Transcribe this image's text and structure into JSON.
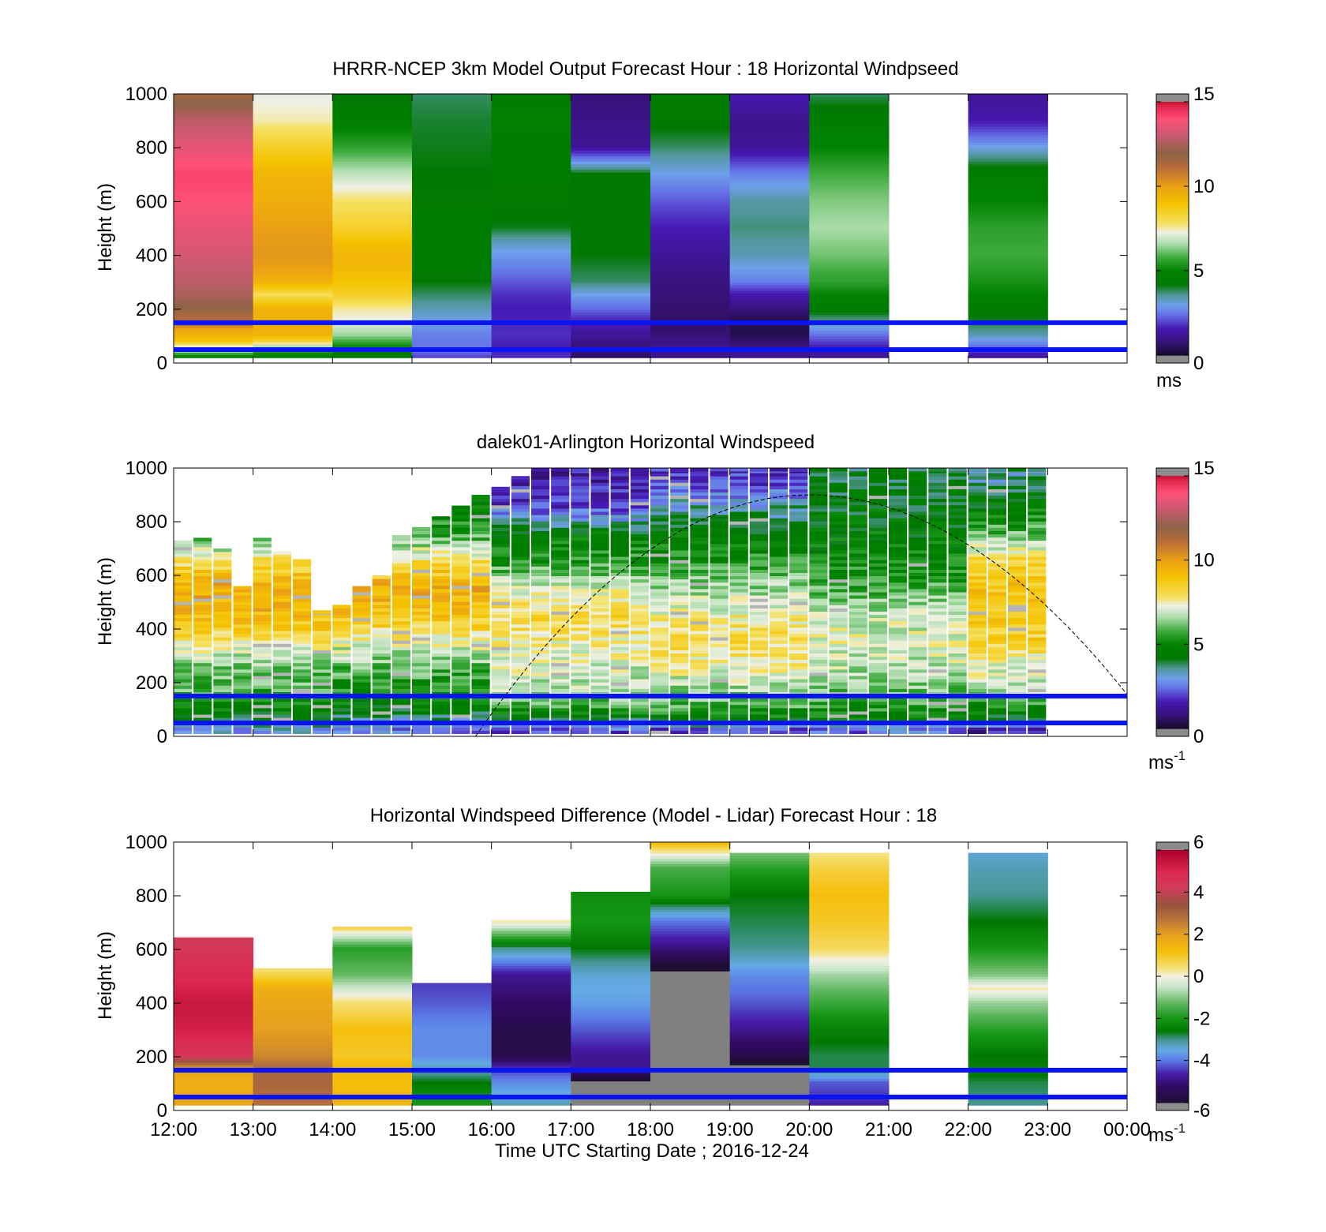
{
  "chart_data": [
    {
      "type": "heatmap",
      "title": "HRRR-NCEP 3km Model Output   Forecast Hour : 18 Horizontal Windpseed",
      "ylabel": "Height (m)",
      "ylim": [
        0,
        1000
      ],
      "yticks": [
        "0",
        "200",
        "400",
        "600",
        "800",
        "1000"
      ],
      "xlim": [
        0,
        12
      ],
      "colorbar": {
        "range": [
          0,
          15
        ],
        "ticks": [
          "0",
          "5",
          "10",
          "15"
        ],
        "unit": "ms"
      },
      "reference_lines_m": [
        150,
        50
      ],
      "columns": [
        {
          "hour": 0,
          "heights": [
            20,
            40,
            60,
            80,
            100,
            120,
            140,
            160,
            180,
            200,
            250,
            300,
            350,
            400,
            450,
            500,
            550,
            600,
            650,
            700,
            800,
            900,
            1000
          ],
          "values": [
            4.8,
            6.5,
            7.5,
            9.0,
            9.5,
            9.8,
            11.0,
            11.2,
            11.5,
            12.0,
            12.5,
            12.8,
            13.0,
            13.2,
            13.4,
            13.6,
            13.8,
            14.0,
            14.1,
            14.2,
            13.5,
            12.8,
            11.5
          ]
        },
        {
          "hour": 1,
          "heights": [
            20,
            40,
            60,
            80,
            100,
            150,
            200,
            250,
            300,
            350,
            400,
            500,
            600,
            700,
            800,
            900,
            1000
          ],
          "values": [
            4.8,
            5.5,
            6.8,
            8.5,
            9.4,
            9.6,
            9.4,
            8.0,
            9.5,
            10.0,
            10.2,
            10.0,
            9.6,
            9.4,
            8.5,
            7.5,
            7.2
          ]
        },
        {
          "hour": 2,
          "heights": [
            20,
            40,
            60,
            100,
            150,
            200,
            250,
            300,
            350,
            400,
            450,
            500,
            600,
            700,
            800,
            900,
            1000
          ],
          "values": [
            4.2,
            4.6,
            5.2,
            6.5,
            7.2,
            7.6,
            8.5,
            9.0,
            9.3,
            9.4,
            9.0,
            8.5,
            7.8,
            6.8,
            5.6,
            4.7,
            4.2
          ]
        },
        {
          "hour": 3,
          "heights": [
            20,
            40,
            60,
            100,
            150,
            200,
            250,
            300,
            350,
            400,
            500,
            600,
            700,
            800,
            900,
            1000
          ],
          "values": [
            2.0,
            2.4,
            2.5,
            2.6,
            3.0,
            3.4,
            3.8,
            4.2,
            4.5,
            4.6,
            4.6,
            4.4,
            4.2,
            4.1,
            4.0,
            3.8
          ]
        },
        {
          "hour": 4,
          "heights": [
            20,
            50,
            100,
            150,
            200,
            250,
            300,
            350,
            400,
            450,
            500,
            600,
            700,
            800,
            900,
            1000
          ],
          "values": [
            1.8,
            1.6,
            1.8,
            1.7,
            1.6,
            1.8,
            2.2,
            2.6,
            2.9,
            3.4,
            4.1,
            4.4,
            4.5,
            4.6,
            4.8,
            4.6
          ]
        },
        {
          "hour": 5,
          "heights": [
            20,
            50,
            100,
            150,
            200,
            250,
            300,
            400,
            500,
            600,
            700,
            800,
            900,
            1000
          ],
          "values": [
            0.6,
            0.8,
            1.2,
            1.6,
            2.4,
            3.0,
            3.8,
            4.2,
            4.3,
            4.3,
            4.2,
            1.2,
            1.0,
            0.8
          ]
        },
        {
          "hour": 6,
          "heights": [
            20,
            50,
            100,
            150,
            200,
            250,
            300,
            400,
            500,
            600,
            700,
            800,
            900,
            1000
          ],
          "values": [
            1.0,
            1.2,
            0.8,
            0.6,
            0.7,
            0.8,
            0.9,
            1.2,
            1.6,
            2.2,
            3.0,
            3.8,
            4.4,
            4.5
          ]
        },
        {
          "hour": 7,
          "heights": [
            20,
            50,
            100,
            150,
            200,
            250,
            300,
            400,
            500,
            600,
            700,
            800,
            900,
            1000
          ],
          "values": [
            1.2,
            1.0,
            0.4,
            0.3,
            0.9,
            1.5,
            2.6,
            3.4,
            3.7,
            3.5,
            2.6,
            1.2,
            1.1,
            1.6
          ]
        },
        {
          "hour": 8,
          "heights": [
            20,
            50,
            100,
            150,
            200,
            250,
            300,
            400,
            500,
            600,
            700,
            800,
            900,
            1000
          ],
          "values": [
            1.2,
            1.5,
            2.4,
            3.5,
            4.5,
            5.0,
            5.6,
            6.2,
            6.6,
            6.3,
            5.8,
            5.0,
            4.6,
            3.8
          ]
        },
        {
          "hour": 10,
          "heights": [
            20,
            50,
            100,
            150,
            200,
            250,
            300,
            400,
            500,
            600,
            700,
            800,
            900,
            1000
          ],
          "values": [
            1.3,
            2.2,
            3.4,
            4.0,
            4.6,
            5.0,
            5.3,
            5.8,
            5.6,
            5.0,
            4.6,
            3.0,
            1.5,
            1.2
          ]
        }
      ]
    },
    {
      "type": "heatmap",
      "title": "dalek01-Arlington  Horizontal Windspeed",
      "ylabel": "Height (m)",
      "ylim": [
        0,
        1000
      ],
      "yticks": [
        "0",
        "200",
        "400",
        "600",
        "800",
        "1000"
      ],
      "xlim": [
        0,
        12
      ],
      "colorbar": {
        "range": [
          0,
          15
        ],
        "ticks": [
          "0",
          "5",
          "10",
          "15"
        ],
        "unit": "ms",
        "unit_sup": "-1"
      },
      "reference_lines_m": [
        150,
        50
      ],
      "dashed_arc": {
        "x_start": 3.8,
        "x_end": 12.0,
        "peak_x": 8.0,
        "peak_height": 900
      },
      "profile_interval_hours": 0.25,
      "top_of_data_m": [
        730,
        740,
        700,
        560,
        740,
        690,
        660,
        470,
        490,
        560,
        600,
        750,
        780,
        820,
        860,
        900,
        930,
        970,
        1000,
        1000,
        1000,
        1000,
        1000,
        1000,
        1000,
        1000,
        1000,
        1000,
        1000,
        1000,
        1000,
        1000,
        1000,
        1000,
        1000,
        1000,
        1000,
        1000,
        1000,
        1000,
        1000,
        1000,
        1000,
        1000
      ],
      "profile_levels_m": [
        20,
        50,
        100,
        150,
        250,
        350,
        450,
        550,
        650,
        750,
        850,
        950
      ],
      "profile_speeds_by_period": [
        {
          "hours": "12:00-14:00",
          "values": [
            3.0,
            4.0,
            5.0,
            5.8,
            6.2,
            7.8,
            9.3,
            9.8,
            8.0,
            5.6,
            5.0,
            4.5
          ]
        },
        {
          "hours": "14:00-16:00",
          "values": [
            2.6,
            3.4,
            4.6,
            5.2,
            6.0,
            7.4,
            9.0,
            9.6,
            8.0,
            5.6,
            5.0,
            4.5
          ]
        },
        {
          "hours": "16:00-18:00",
          "values": [
            2.2,
            4.0,
            5.5,
            6.6,
            7.0,
            7.6,
            8.2,
            7.0,
            5.5,
            4.6,
            2.0,
            1.4
          ]
        },
        {
          "hours": "18:00-20:00",
          "values": [
            2.0,
            4.4,
            5.6,
            6.4,
            7.4,
            8.2,
            7.4,
            6.6,
            5.4,
            4.6,
            3.4,
            1.8
          ]
        },
        {
          "hours": "20:00-22:00",
          "values": [
            2.4,
            4.6,
            5.4,
            6.0,
            6.8,
            7.2,
            6.8,
            5.8,
            5.0,
            4.6,
            4.4,
            4.2
          ]
        },
        {
          "hours": "22:00-00:00",
          "values": [
            1.4,
            3.8,
            5.0,
            6.6,
            7.2,
            8.4,
            8.8,
            9.0,
            8.2,
            6.0,
            4.6,
            3.6
          ]
        }
      ]
    },
    {
      "type": "heatmap",
      "title": "Horizontal Windspeed Difference (Model - Lidar) Forecast Hour : 18",
      "ylabel": "Height (m)",
      "xlabel": "Time UTC  Starting Date ; 2016-12-24",
      "ylim": [
        0,
        1000
      ],
      "yticks": [
        "0",
        "200",
        "400",
        "600",
        "800",
        "1000"
      ],
      "xlim": [
        0,
        12
      ],
      "xticks": [
        "12:00",
        "13:00",
        "14:00",
        "15:00",
        "16:00",
        "17:00",
        "18:00",
        "19:00",
        "20:00",
        "21:00",
        "22:00",
        "23:00",
        "00:00"
      ],
      "colorbar": {
        "range": [
          -6,
          6
        ],
        "ticks": [
          "-6",
          "-4",
          "-2",
          "0",
          "2",
          "4",
          "6"
        ],
        "unit": "ms",
        "unit_sup": "-1"
      },
      "reference_lines_m": [
        150,
        50
      ],
      "columns": [
        {
          "hour": 0,
          "top_m": 645,
          "heights": [
            20,
            100,
            150,
            200,
            300,
            400,
            500,
            600,
            645
          ],
          "values": [
            1.8,
            1.6,
            1.9,
            4.5,
            5.2,
            5.4,
            4.9,
            4.4,
            4.2
          ]
        },
        {
          "hour": 1,
          "top_m": 530,
          "heights": [
            20,
            100,
            150,
            200,
            300,
            400,
            450,
            500,
            530
          ],
          "values": [
            2.8,
            3.0,
            3.0,
            2.4,
            2.0,
            1.8,
            1.6,
            0.8,
            0.3
          ]
        },
        {
          "hour": 2,
          "top_m": 685,
          "heights": [
            20,
            100,
            150,
            200,
            300,
            400,
            500,
            600,
            685
          ],
          "values": [
            1.4,
            1.2,
            1.4,
            1.0,
            1.2,
            0.4,
            -1.2,
            -1.8,
            0.8
          ]
        },
        {
          "hour": 3,
          "top_m": 475,
          "heights": [
            20,
            100,
            150,
            200,
            300,
            400,
            475
          ],
          "values": [
            -2.0,
            -2.6,
            -3.2,
            -3.8,
            -3.8,
            -4.2,
            -4.4
          ]
        },
        {
          "hour": 4,
          "top_m": 710,
          "heights": [
            20,
            100,
            150,
            200,
            300,
            400,
            500,
            600,
            710
          ],
          "values": [
            -3.2,
            -3.8,
            -4.4,
            -5.6,
            -5.6,
            -5.2,
            -4.8,
            -3.0,
            0.5
          ]
        },
        {
          "hour": 5,
          "top_m": 815,
          "heights": [
            20,
            100,
            150,
            200,
            300,
            400,
            500,
            600,
            700,
            815
          ],
          "values": [
            -6.5,
            -6.5,
            -4.8,
            -4.8,
            -4.2,
            -3.6,
            -3.4,
            -2.6,
            -2.0,
            -2.2
          ]
        },
        {
          "hour": 6,
          "top_m": 1000,
          "heights": [
            20,
            100,
            150,
            200,
            300,
            400,
            500,
            600,
            700,
            800,
            900,
            1000
          ],
          "values": [
            -6.5,
            -6.5,
            -6.5,
            -6.5,
            -6.5,
            -6.5,
            -6.5,
            -5.0,
            -4.0,
            -2.0,
            -1.5,
            1.5
          ]
        },
        {
          "hour": 7,
          "top_m": 960,
          "heights": [
            20,
            100,
            150,
            200,
            300,
            400,
            500,
            600,
            700,
            800,
            900,
            960
          ],
          "values": [
            -6.5,
            -6.5,
            -6.5,
            -5.6,
            -4.8,
            -4.2,
            -3.8,
            -3.0,
            -2.8,
            -2.6,
            -1.8,
            -1.0
          ]
        },
        {
          "hour": 8,
          "top_m": 960,
          "heights": [
            20,
            100,
            150,
            200,
            300,
            400,
            500,
            600,
            700,
            800,
            900,
            960
          ],
          "values": [
            -4.6,
            -4.2,
            -2.8,
            -2.8,
            -2.4,
            -1.6,
            -0.8,
            0.6,
            1.0,
            1.2,
            0.8,
            0.3
          ]
        },
        {
          "hour": 10,
          "top_m": 960,
          "heights": [
            20,
            100,
            150,
            200,
            300,
            400,
            450,
            500,
            600,
            700,
            800,
            900,
            960
          ],
          "values": [
            -3.0,
            -2.8,
            -2.4,
            -2.6,
            -1.8,
            -0.8,
            0.2,
            -1.0,
            -2.0,
            -2.6,
            -3.0,
            -3.2,
            -3.4
          ]
        }
      ]
    }
  ]
}
